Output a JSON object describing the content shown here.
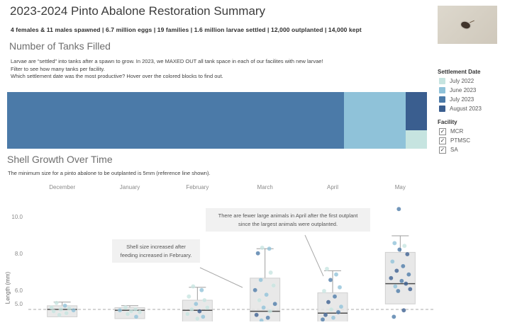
{
  "header": {
    "title": "2023-2024 Pinto Abalone Restoration Summary",
    "stats_line": "4 females & 11 males spawned | 6.7 million eggs | 19 families | 1.6 million larvae settled | 12,000 outplanted | 14,000 kept"
  },
  "tanks_section": {
    "heading": "Number of Tanks Filled",
    "desc_lines": [
      "Larvae are “settled” into tanks after a spawn to grow. In 2023, we MAXED OUT all tank space in each of our facilites with new larvae!",
      "Filter to see how many tanks per facility.",
      "Which settlement date was the most productive? Hover over the colored blocks to find out."
    ]
  },
  "settlement_legend": {
    "title": "Settlement Date",
    "items": [
      {
        "key": "jul22",
        "label": "July 2022",
        "color": "#c6e4e0"
      },
      {
        "key": "jun23",
        "label": "June 2023",
        "color": "#8fc2d9"
      },
      {
        "key": "jul23",
        "label": "July 2023",
        "color": "#4b7aa8"
      },
      {
        "key": "aug23",
        "label": "August 2023",
        "color": "#3a5e8f"
      }
    ]
  },
  "facility_legend": {
    "title": "Facility",
    "check_glyph": "✓",
    "items": [
      {
        "label": "MCR",
        "checked": true
      },
      {
        "label": "PTMSC",
        "checked": true
      },
      {
        "label": "SA",
        "checked": true
      }
    ]
  },
  "growth_section": {
    "heading": "Shell Growth Over Time",
    "desc": "The minimum size for a pinto abalone to be outplanted is 5mm (reference line shown).",
    "ylabel": "Length (mm)",
    "annotations": [
      "Shell size increased after feeding increased in February.",
      "There are fewer large animals in April after the first outplant since the largest animals were outplanted."
    ]
  },
  "chart_data": [
    {
      "type": "treemap",
      "title": "Number of Tanks Filled",
      "unit": "estimated share of tanks (%)",
      "blocks": [
        {
          "key": "jul23",
          "group": "July 2023",
          "share_pct": 80.2,
          "x": 0,
          "y": 0,
          "w": 80.2,
          "h": 100
        },
        {
          "key": "jun23",
          "group": "June 2023",
          "share_pct": 14.7,
          "x": 80.2,
          "y": 0,
          "w": 14.7,
          "h": 100
        },
        {
          "key": "aug23",
          "group": "August 2023",
          "share_pct": 3.4,
          "x": 94.9,
          "y": 0,
          "w": 5.1,
          "h": 67
        },
        {
          "key": "jul22",
          "group": "July 2022",
          "share_pct": 1.7,
          "x": 94.9,
          "y": 67,
          "w": 5.1,
          "h": 33
        }
      ]
    },
    {
      "type": "boxplot-scatter",
      "title": "Shell Growth Over Time",
      "categories": [
        "December",
        "January",
        "February",
        "March",
        "April",
        "May"
      ],
      "ylabel": "Length (mm)",
      "yticks": [
        {
          "label": "10.0",
          "v": 10
        },
        {
          "label": "8.0",
          "v": 8
        },
        {
          "label": "6.0",
          "v": 6
        },
        {
          "label": "5.0",
          "v": 5,
          "above_line": true
        }
      ],
      "ylim_visible": [
        4.3,
        10.6
      ],
      "reference_line_mm": 5,
      "boxes": [
        {
          "category": "December",
          "q1": 4.6,
          "median": 5.0,
          "q3": 5.2,
          "whisker_high": 5.4
        },
        {
          "category": "January",
          "q1": 4.5,
          "median": 4.95,
          "q3": 5.1,
          "whisker_high": 5.2
        },
        {
          "category": "February",
          "q1": 4.2,
          "median": 4.95,
          "q3": 5.5,
          "whisker_high": 6.2
        },
        {
          "category": "March",
          "q1": 4.2,
          "median": 4.9,
          "q3": 6.7,
          "whisker_high": 8.3
        },
        {
          "category": "April",
          "q1": 4.2,
          "median": 4.8,
          "q3": 5.9,
          "whisker_high": 7.1
        },
        {
          "category": "May",
          "q1": 5.3,
          "median": 6.4,
          "q3": 8.1,
          "whisker_high": 9.0
        }
      ],
      "point_format": [
        "month_index",
        "length_mm",
        "settlement_key",
        "jitter_px"
      ],
      "points": [
        [
          0,
          5.35,
          "jul22",
          -8
        ],
        [
          0,
          5.2,
          "jun23",
          4
        ],
        [
          0,
          5.1,
          "jul22",
          -15
        ],
        [
          0,
          5.05,
          "jul22",
          10
        ],
        [
          0,
          5.0,
          "jul22",
          -2
        ],
        [
          0,
          4.95,
          "jun23",
          16
        ],
        [
          0,
          4.9,
          "jul22",
          -12
        ],
        [
          0,
          4.8,
          "jul22",
          6
        ],
        [
          0,
          4.7,
          "jul22",
          -4
        ],
        [
          1,
          5.1,
          "jul22",
          -6
        ],
        [
          1,
          5.0,
          "jul22",
          8
        ],
        [
          1,
          4.95,
          "jun23",
          -14
        ],
        [
          1,
          4.9,
          "jul22",
          2
        ],
        [
          1,
          4.85,
          "jul22",
          14
        ],
        [
          1,
          4.75,
          "jul22",
          -3
        ],
        [
          1,
          4.6,
          "jun23",
          9
        ],
        [
          2,
          6.25,
          "jul22",
          -6
        ],
        [
          2,
          6.05,
          "jun23",
          6
        ],
        [
          2,
          5.7,
          "jul22",
          -12
        ],
        [
          2,
          5.5,
          "jul22",
          10
        ],
        [
          2,
          5.3,
          "jun23",
          -2
        ],
        [
          2,
          5.1,
          "jul22",
          14
        ],
        [
          2,
          5.0,
          "jul22",
          -8
        ],
        [
          2,
          4.9,
          "aug23",
          3
        ],
        [
          2,
          4.75,
          "jul22",
          -14
        ],
        [
          2,
          4.6,
          "jun23",
          8
        ],
        [
          2,
          4.5,
          "jul22",
          0
        ],
        [
          3,
          8.35,
          "jul22",
          -4
        ],
        [
          3,
          8.3,
          "jun23",
          6
        ],
        [
          3,
          8.05,
          "jul23",
          -10
        ],
        [
          3,
          7.0,
          "jul22",
          8
        ],
        [
          3,
          6.6,
          "jun23",
          -6
        ],
        [
          3,
          6.3,
          "jul22",
          12
        ],
        [
          3,
          6.05,
          "jul23",
          -14
        ],
        [
          3,
          5.8,
          "jun23",
          2
        ],
        [
          3,
          5.5,
          "jul22",
          -8
        ],
        [
          3,
          5.3,
          "jul23",
          14
        ],
        [
          3,
          5.1,
          "jun23",
          -2
        ],
        [
          3,
          4.9,
          "jul22",
          7
        ],
        [
          3,
          4.7,
          "aug23",
          -12
        ],
        [
          3,
          4.55,
          "jul23",
          4
        ],
        [
          3,
          4.4,
          "jun23",
          -5
        ],
        [
          4,
          7.2,
          "jul22",
          -8
        ],
        [
          4,
          6.9,
          "jun23",
          5
        ],
        [
          4,
          6.6,
          "jul23",
          -3
        ],
        [
          4,
          6.2,
          "jun23",
          10
        ],
        [
          4,
          6.0,
          "jul22",
          -12
        ],
        [
          4,
          5.7,
          "jul23",
          3
        ],
        [
          4,
          5.4,
          "aug23",
          -6
        ],
        [
          4,
          5.15,
          "jun23",
          12
        ],
        [
          4,
          5.0,
          "jul22",
          -2
        ],
        [
          4,
          4.85,
          "jul23",
          8
        ],
        [
          4,
          4.7,
          "aug23",
          -10
        ],
        [
          4,
          4.55,
          "jun23",
          1
        ],
        [
          4,
          4.45,
          "jul23",
          -14
        ],
        [
          5,
          10.45,
          "jul23",
          -2
        ],
        [
          5,
          8.6,
          "jun23",
          -8
        ],
        [
          5,
          8.45,
          "jul22",
          6
        ],
        [
          5,
          8.25,
          "jul23",
          -1
        ],
        [
          5,
          8.0,
          "aug23",
          10
        ],
        [
          5,
          7.6,
          "jun23",
          -11
        ],
        [
          5,
          7.35,
          "jul23",
          4
        ],
        [
          5,
          7.1,
          "aug23",
          -5
        ],
        [
          5,
          6.9,
          "jul23",
          12
        ],
        [
          5,
          6.7,
          "aug23",
          -13
        ],
        [
          5,
          6.55,
          "jul23",
          2
        ],
        [
          5,
          6.4,
          "aug23",
          8
        ],
        [
          5,
          6.25,
          "jun23",
          -7
        ],
        [
          5,
          6.1,
          "aug23",
          14
        ],
        [
          5,
          6.0,
          "jul23",
          -3
        ],
        [
          5,
          4.95,
          "aug23",
          5
        ],
        [
          5,
          4.6,
          "jul23",
          -9
        ]
      ]
    }
  ]
}
